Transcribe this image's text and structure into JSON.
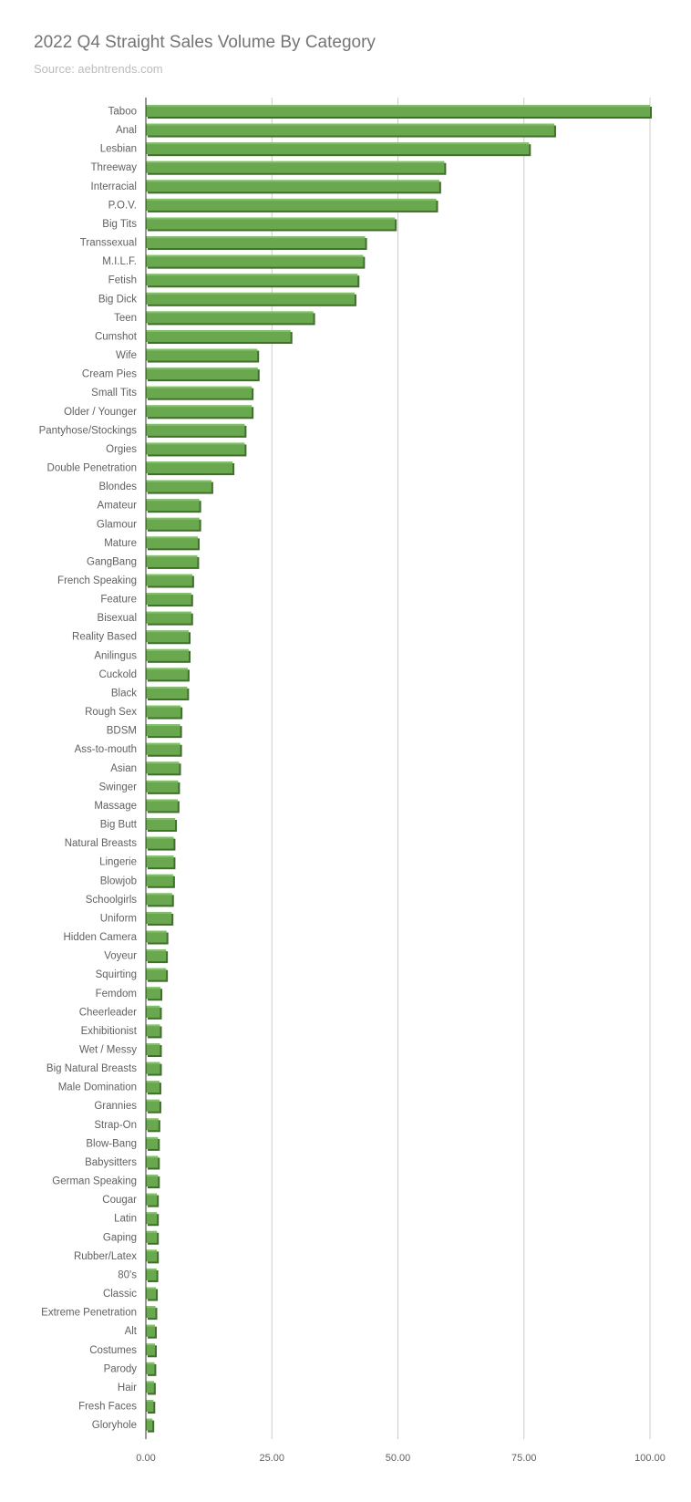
{
  "chart_data": {
    "type": "bar",
    "orientation": "horizontal",
    "title": "2022 Q4 Straight Sales Volume By Category",
    "subtitle": "Source: aebntrends.com",
    "xlim": [
      0,
      100
    ],
    "x_ticks": [
      "0.00",
      "25.00",
      "50.00",
      "75.00",
      "100.00"
    ],
    "grid": true,
    "bar_color": "#6aa84f",
    "bar_shade_color": "#38761d",
    "categories": [
      "Taboo",
      "Anal",
      "Lesbian",
      "Threeway",
      "Interracial",
      "P.O.V.",
      "Big Tits",
      "Transsexual",
      "M.I.L.F.",
      "Fetish",
      "Big Dick",
      "Teen",
      "Cumshot",
      "Wife",
      "Cream Pies",
      "Small Tits",
      "Older / Younger",
      "Pantyhose/Stockings",
      "Orgies",
      "Double Penetration",
      "Blondes",
      "Amateur",
      "Glamour",
      "Mature",
      "GangBang",
      "French Speaking",
      "Feature",
      "Bisexual",
      "Reality Based",
      "Anilingus",
      "Cuckold",
      "Black",
      "Rough Sex",
      "BDSM",
      "Ass-to-mouth",
      "Asian",
      "Swinger",
      "Massage",
      "Big Butt",
      "Natural Breasts",
      "Lingerie",
      "Blowjob",
      "Schoolgirls",
      "Uniform",
      "Hidden Camera",
      "Voyeur",
      "Squirting",
      "Femdom",
      "Cheerleader",
      "Exhibitionist",
      "Wet / Messy",
      "Big Natural Breasts",
      "Male Domination",
      "Grannies",
      "Strap-On",
      "Blow-Bang",
      "Babysitters",
      "German Speaking",
      "Cougar",
      "Latin",
      "Gaping",
      "Rubber/Latex",
      "80's",
      "Classic",
      "Extreme Penetration",
      "Alt",
      "Costumes",
      "Parody",
      "Hair",
      "Fresh Faces",
      "Gloryhole"
    ],
    "values": [
      100,
      81,
      76,
      59.2,
      58.2,
      57.6,
      49.4,
      43.5,
      43.1,
      42,
      41.4,
      33.2,
      28.7,
      22.1,
      22.2,
      21,
      21,
      19.6,
      19.6,
      17.2,
      13,
      10.6,
      10.6,
      10.3,
      10.2,
      9.2,
      9,
      9,
      8.5,
      8.5,
      8.3,
      8.2,
      6.9,
      6.8,
      6.8,
      6.6,
      6.4,
      6.3,
      5.8,
      5.5,
      5.5,
      5.4,
      5.2,
      5.1,
      4.1,
      4,
      4,
      2.9,
      2.8,
      2.8,
      2.8,
      2.8,
      2.7,
      2.7,
      2.5,
      2.4,
      2.4,
      2.4,
      2.2,
      2.2,
      2.2,
      2.2,
      2.1,
      2,
      1.9,
      1.8,
      1.8,
      1.7,
      1.6,
      1.5,
      1.3
    ]
  }
}
